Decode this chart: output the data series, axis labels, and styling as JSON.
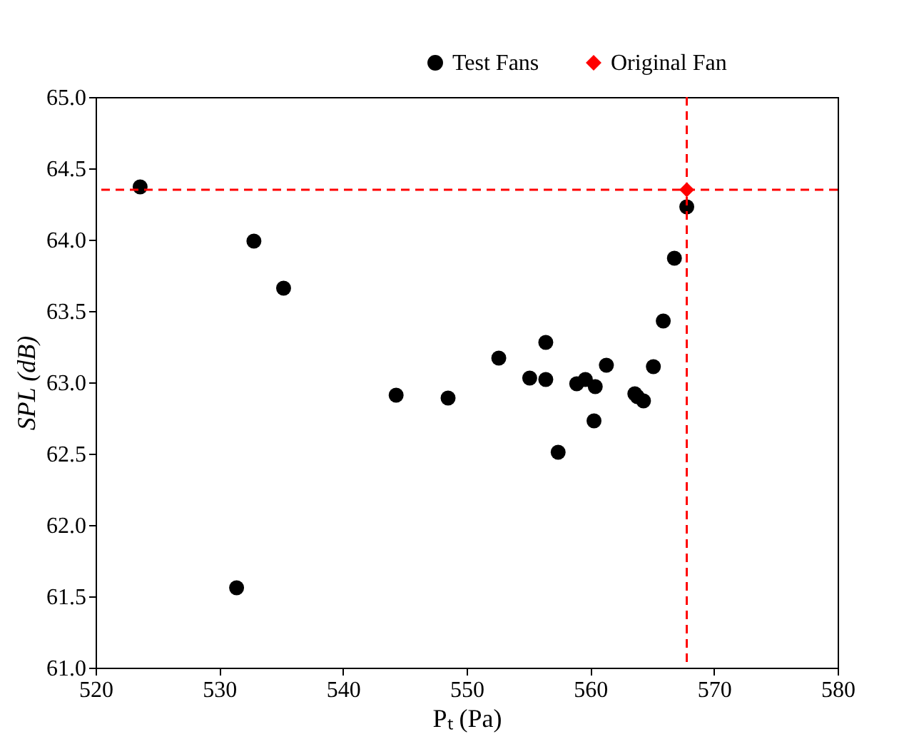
{
  "chart_data": {
    "type": "scatter",
    "xlabel": "Pₜ (Pa)",
    "ylabel": "SPL (dB)",
    "xlim": [
      520,
      580
    ],
    "xticks": [
      520,
      530,
      540,
      550,
      560,
      570,
      580
    ],
    "ylim": [
      61.0,
      65.0
    ],
    "yticks": [
      {
        "value": 61.0,
        "label": "61.0"
      },
      {
        "value": 61.5,
        "label": "61.5"
      },
      {
        "value": 62.0,
        "label": "62.0"
      },
      {
        "value": 62.5,
        "label": "62.5"
      },
      {
        "value": 63.0,
        "label": "63.0"
      },
      {
        "value": 63.5,
        "label": "63.5"
      },
      {
        "value": 64.0,
        "label": "64.0"
      },
      {
        "value": 64.5,
        "label": "64.5"
      },
      {
        "value": 65.0,
        "label": "65.0"
      }
    ],
    "grid": false,
    "legend": "top right",
    "series": [
      {
        "name": "Test Fans",
        "color": "#000000",
        "marker": "circle",
        "x": [
          523.6,
          532.8,
          535.2,
          531.4,
          544.3,
          548.5,
          552.6,
          555.1,
          556.4,
          556.4,
          557.4,
          558.9,
          559.6,
          560.3,
          560.4,
          561.3,
          563.6,
          563.8,
          564.3,
          565.1,
          565.9,
          566.8,
          567.8
        ],
        "values": [
          64.37,
          63.99,
          63.66,
          61.56,
          62.91,
          62.89,
          63.17,
          63.03,
          63.28,
          63.02,
          62.51,
          62.99,
          63.02,
          62.73,
          62.97,
          63.12,
          62.92,
          62.9,
          62.87,
          63.11,
          63.43,
          63.87,
          64.23
        ]
      },
      {
        "name": "Original Fan",
        "color": "#ff0000",
        "marker": "diamond",
        "x": [
          567.8
        ],
        "values": [
          64.35
        ]
      }
    ],
    "ref_lines": [
      {
        "axis": "y",
        "value": 64.35,
        "color": "#ff0000",
        "line_style": "dashed"
      },
      {
        "axis": "x",
        "value": 567.8,
        "color": "#ff0000",
        "line_style": "dashed"
      }
    ]
  }
}
